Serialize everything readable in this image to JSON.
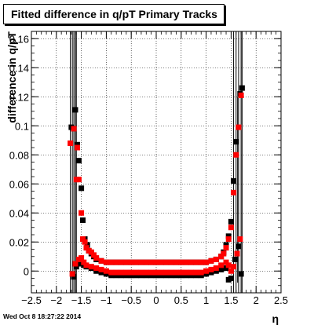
{
  "title": "Fitted difference in q/pT  Primary Tracks",
  "footer_timestamp": "Wed Oct  8 18:27:22 2014",
  "chart_data": {
    "type": "scatter",
    "xlabel": "η",
    "ylabel": "difference in q/pT",
    "xlim": [
      -2.5,
      2.5
    ],
    "ylim": [
      -0.015,
      0.165
    ],
    "x_ticks": [
      "−2.5",
      "−2",
      "−1.5",
      "−1",
      "−0.5",
      "0",
      "0.5",
      "1",
      "1.5",
      "2",
      "2.5"
    ],
    "y_ticks": [
      "0",
      "0.02",
      "0.04",
      "0.06",
      "0.08",
      "0.1",
      "0.12",
      "0.14",
      "0.16"
    ],
    "grid": true,
    "series": [
      {
        "color": "#000000",
        "marker": "square",
        "points": [
          [
            -1.7,
            0.099
          ],
          [
            -1.65,
            0.098
          ],
          [
            -1.62,
            0.111
          ],
          [
            -1.58,
            0.087
          ],
          [
            -1.55,
            0.076
          ],
          [
            -1.5,
            0.057
          ],
          [
            -1.47,
            0.035
          ],
          [
            -1.43,
            0.022
          ],
          [
            -1.38,
            0.018
          ],
          [
            -1.35,
            0.014
          ],
          [
            -1.3,
            0.012
          ],
          [
            -1.25,
            0.01
          ],
          [
            -1.2,
            0.008
          ],
          [
            -1.1,
            0.007
          ],
          [
            -1.0,
            0.006
          ],
          [
            -0.9,
            0.006
          ],
          [
            -0.8,
            0.006
          ],
          [
            -0.7,
            0.006
          ],
          [
            -0.6,
            0.006
          ],
          [
            -0.5,
            0.006
          ],
          [
            -0.4,
            0.006
          ],
          [
            -0.3,
            0.006
          ],
          [
            -0.2,
            0.006
          ],
          [
            -0.1,
            0.006
          ],
          [
            0.0,
            0.006
          ],
          [
            0.1,
            0.006
          ],
          [
            0.2,
            0.006
          ],
          [
            0.3,
            0.006
          ],
          [
            0.4,
            0.006
          ],
          [
            0.5,
            0.006
          ],
          [
            0.6,
            0.006
          ],
          [
            0.7,
            0.006
          ],
          [
            0.8,
            0.006
          ],
          [
            0.9,
            0.006
          ],
          [
            1.0,
            0.006
          ],
          [
            1.1,
            0.007
          ],
          [
            1.2,
            0.008
          ],
          [
            1.3,
            0.01
          ],
          [
            1.35,
            0.013
          ],
          [
            1.4,
            0.018
          ],
          [
            1.45,
            0.024
          ],
          [
            1.5,
            0.034
          ],
          [
            1.55,
            0.062
          ],
          [
            1.6,
            0.089
          ],
          [
            1.68,
            0.122
          ],
          [
            1.72,
            0.126
          ],
          [
            -1.65,
            -0.004
          ],
          [
            -1.6,
            0.003
          ],
          [
            -1.55,
            0.005
          ],
          [
            -1.5,
            0.006
          ],
          [
            -1.45,
            0.004
          ],
          [
            -1.4,
            0.003
          ],
          [
            -1.3,
            0.002
          ],
          [
            -1.2,
            0.0
          ],
          [
            -1.1,
            -0.001
          ],
          [
            -1.0,
            -0.002
          ],
          [
            -0.9,
            -0.003
          ],
          [
            -0.8,
            -0.003
          ],
          [
            -0.7,
            -0.003
          ],
          [
            -0.6,
            -0.003
          ],
          [
            -0.5,
            -0.003
          ],
          [
            -0.4,
            -0.003
          ],
          [
            -0.3,
            -0.003
          ],
          [
            -0.2,
            -0.003
          ],
          [
            -0.1,
            -0.003
          ],
          [
            0.0,
            -0.003
          ],
          [
            0.1,
            -0.003
          ],
          [
            0.2,
            -0.003
          ],
          [
            0.3,
            -0.003
          ],
          [
            0.4,
            -0.003
          ],
          [
            0.5,
            -0.003
          ],
          [
            0.6,
            -0.003
          ],
          [
            0.7,
            -0.003
          ],
          [
            0.8,
            -0.003
          ],
          [
            0.9,
            -0.003
          ],
          [
            1.0,
            -0.002
          ],
          [
            1.1,
            -0.001
          ],
          [
            1.2,
            0.0
          ],
          [
            1.3,
            0.001
          ],
          [
            1.4,
            0.002
          ],
          [
            1.45,
            -0.006
          ],
          [
            1.5,
            -0.005
          ],
          [
            1.58,
            0.008
          ],
          [
            1.65,
            0.017
          ],
          [
            1.7,
            -0.002
          ]
        ]
      },
      {
        "color": "#ff0000",
        "marker": "square",
        "points": [
          [
            -1.72,
            0.088
          ],
          [
            -1.65,
            0.098
          ],
          [
            -1.6,
            0.063
          ],
          [
            -1.58,
            0.085
          ],
          [
            -1.55,
            0.063
          ],
          [
            -1.5,
            0.04
          ],
          [
            -1.47,
            0.022
          ],
          [
            -1.43,
            0.02
          ],
          [
            -1.4,
            0.016
          ],
          [
            -1.35,
            0.014
          ],
          [
            -1.3,
            0.013
          ],
          [
            -1.25,
            0.011
          ],
          [
            -1.2,
            0.009
          ],
          [
            -1.1,
            0.007
          ],
          [
            -1.0,
            0.006
          ],
          [
            -0.9,
            0.006
          ],
          [
            -0.8,
            0.006
          ],
          [
            -0.7,
            0.006
          ],
          [
            -0.6,
            0.006
          ],
          [
            -0.5,
            0.006
          ],
          [
            -0.4,
            0.006
          ],
          [
            -0.3,
            0.006
          ],
          [
            -0.2,
            0.006
          ],
          [
            -0.1,
            0.006
          ],
          [
            0.0,
            0.006
          ],
          [
            0.1,
            0.006
          ],
          [
            0.2,
            0.006
          ],
          [
            0.3,
            0.006
          ],
          [
            0.4,
            0.006
          ],
          [
            0.5,
            0.006
          ],
          [
            0.6,
            0.006
          ],
          [
            0.7,
            0.006
          ],
          [
            0.8,
            0.006
          ],
          [
            0.9,
            0.006
          ],
          [
            1.0,
            0.006
          ],
          [
            1.1,
            0.007
          ],
          [
            1.2,
            0.008
          ],
          [
            1.3,
            0.01
          ],
          [
            1.35,
            0.012
          ],
          [
            1.4,
            0.016
          ],
          [
            1.45,
            0.022
          ],
          [
            1.5,
            0.03
          ],
          [
            1.55,
            0.054
          ],
          [
            1.6,
            0.08
          ],
          [
            1.65,
            0.099
          ],
          [
            1.7,
            0.121
          ],
          [
            -1.68,
            -0.002
          ],
          [
            -1.62,
            0.005
          ],
          [
            -1.55,
            0.008
          ],
          [
            -1.5,
            0.009
          ],
          [
            -1.45,
            0.006
          ],
          [
            -1.4,
            0.004
          ],
          [
            -1.3,
            0.003
          ],
          [
            -1.2,
            0.002
          ],
          [
            -1.1,
            0.001
          ],
          [
            -1.0,
            0.0
          ],
          [
            -0.9,
            -0.001
          ],
          [
            -0.8,
            -0.001
          ],
          [
            -0.7,
            -0.001
          ],
          [
            -0.6,
            -0.001
          ],
          [
            -0.5,
            -0.001
          ],
          [
            -0.4,
            -0.001
          ],
          [
            -0.3,
            -0.001
          ],
          [
            -0.2,
            -0.001
          ],
          [
            -0.1,
            -0.001
          ],
          [
            0.0,
            -0.001
          ],
          [
            0.1,
            -0.001
          ],
          [
            0.2,
            -0.001
          ],
          [
            0.3,
            -0.001
          ],
          [
            0.4,
            -0.001
          ],
          [
            0.5,
            -0.001
          ],
          [
            0.6,
            -0.001
          ],
          [
            0.7,
            -0.001
          ],
          [
            0.8,
            -0.001
          ],
          [
            0.9,
            -0.001
          ],
          [
            1.0,
            0.0
          ],
          [
            1.1,
            0.001
          ],
          [
            1.2,
            0.002
          ],
          [
            1.3,
            0.004
          ],
          [
            1.4,
            0.006
          ],
          [
            1.45,
            0.004
          ],
          [
            1.5,
            0.0
          ],
          [
            1.55,
            0.003
          ],
          [
            1.62,
            0.012
          ],
          [
            1.68,
            0.022
          ]
        ]
      }
    ],
    "error_bar_x": [
      -1.72,
      -1.68,
      -1.65,
      -1.62,
      -1.6,
      1.55,
      1.6,
      1.65,
      1.7,
      1.72
    ]
  }
}
